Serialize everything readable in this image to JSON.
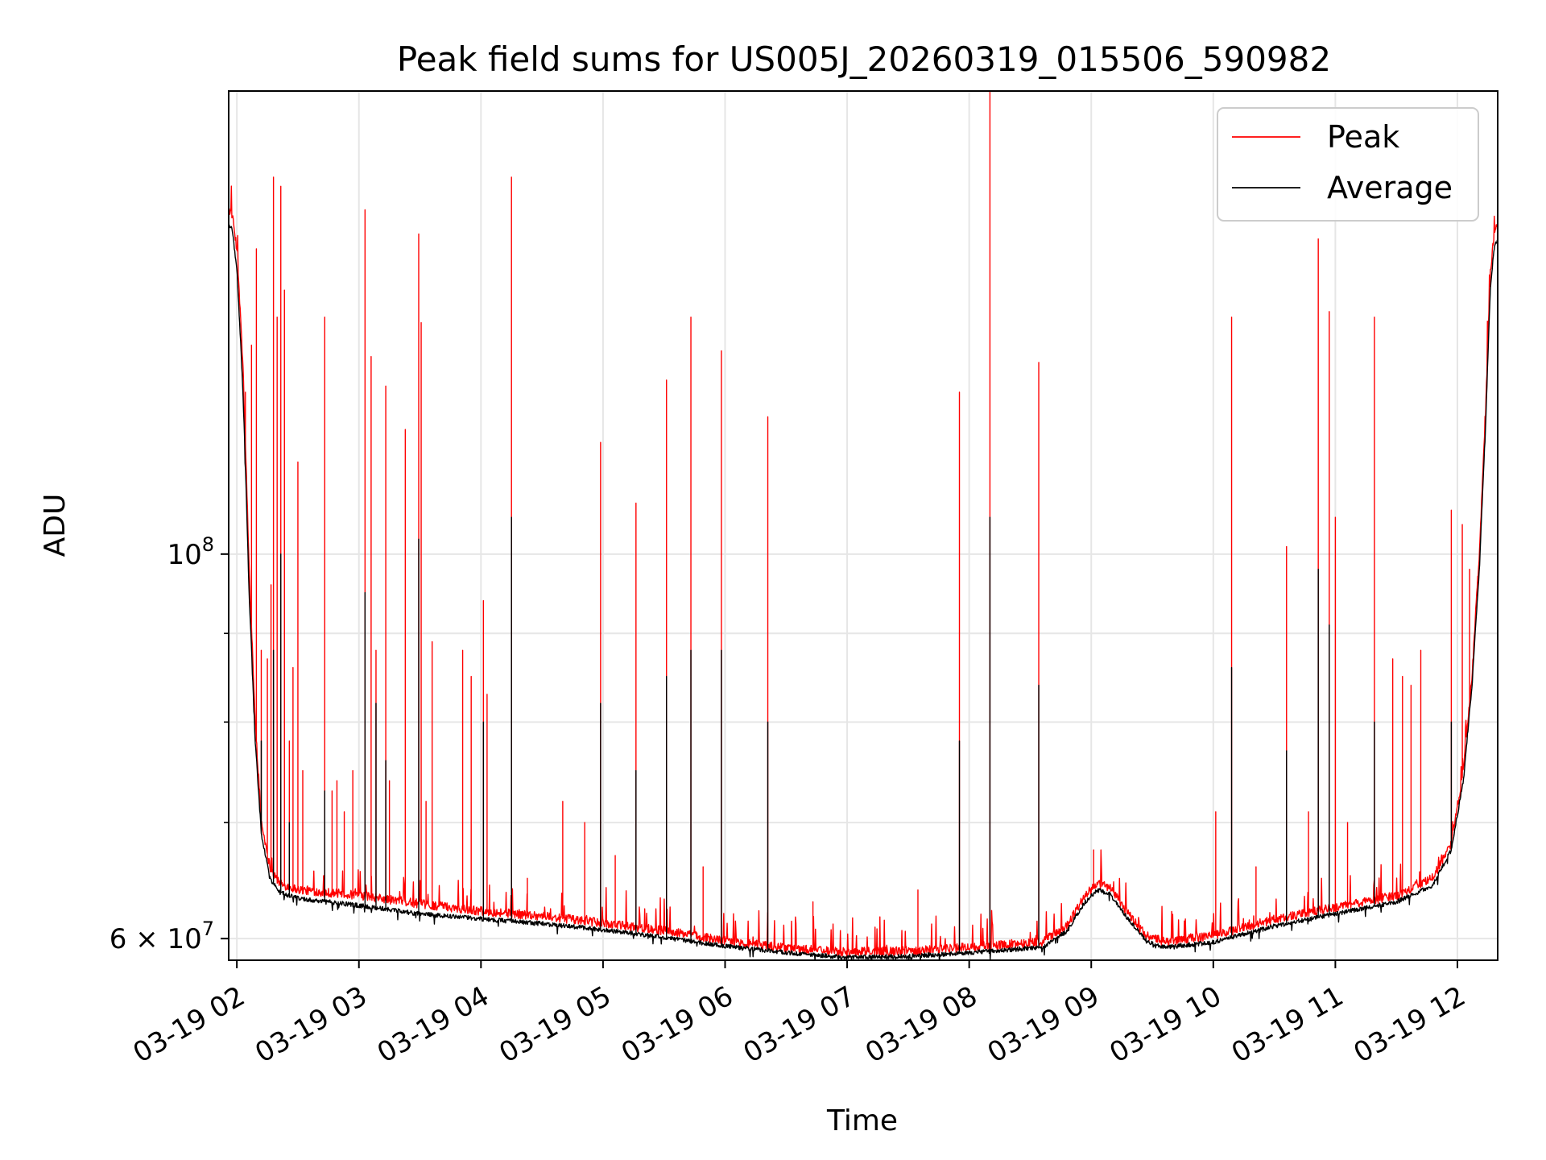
{
  "chart_data": {
    "type": "line",
    "title": "Peak field sums for US005J_20260319_015506_590982",
    "xlabel": "Time",
    "ylabel": "ADU",
    "yscale": "log",
    "ylim": [
      58300000,
      185000000
    ],
    "xlim_hours": [
      1.933,
      12.33
    ],
    "grid": true,
    "legend_position": "upper-right",
    "x_ticks": [
      {
        "hour": 2,
        "label": "03-19 02"
      },
      {
        "hour": 3,
        "label": "03-19 03"
      },
      {
        "hour": 4,
        "label": "03-19 04"
      },
      {
        "hour": 5,
        "label": "03-19 05"
      },
      {
        "hour": 6,
        "label": "03-19 06"
      },
      {
        "hour": 7,
        "label": "03-19 07"
      },
      {
        "hour": 8,
        "label": "03-19 08"
      },
      {
        "hour": 9,
        "label": "03-19 09"
      },
      {
        "hour": 10,
        "label": "03-19 10"
      },
      {
        "hour": 11,
        "label": "03-19 11"
      },
      {
        "hour": 12,
        "label": "03-19 12"
      }
    ],
    "y_major_ticks": [
      {
        "value": 60000000,
        "base": "6 × 10",
        "exp": "7"
      },
      {
        "value": 100000000,
        "base": "10",
        "exp": "8"
      }
    ],
    "y_minor_ticks": [
      70000000,
      80000000,
      90000000
    ],
    "series": [
      {
        "name": "Peak",
        "color": "#ff0000",
        "baseline": [
          [
            1.935,
            158000000
          ],
          [
            1.96,
            157000000
          ],
          [
            2.0,
            150000000
          ],
          [
            2.05,
            128000000
          ],
          [
            2.1,
            98000000
          ],
          [
            2.15,
            80000000
          ],
          [
            2.2,
            70000000
          ],
          [
            2.27,
            66000000
          ],
          [
            2.35,
            64500000
          ],
          [
            2.5,
            64000000
          ],
          [
            3.0,
            63500000
          ],
          [
            3.5,
            62800000
          ],
          [
            4.0,
            62200000
          ],
          [
            4.5,
            61800000
          ],
          [
            5.0,
            61200000
          ],
          [
            5.5,
            60600000
          ],
          [
            6.0,
            59800000
          ],
          [
            6.5,
            59200000
          ],
          [
            7.0,
            58900000
          ],
          [
            7.5,
            59000000
          ],
          [
            8.0,
            59300000
          ],
          [
            8.6,
            59700000
          ],
          [
            8.8,
            61000000
          ],
          [
            8.95,
            63500000
          ],
          [
            9.05,
            64500000
          ],
          [
            9.15,
            64200000
          ],
          [
            9.3,
            62000000
          ],
          [
            9.45,
            60200000
          ],
          [
            9.6,
            59700000
          ],
          [
            10.0,
            60200000
          ],
          [
            10.5,
            61500000
          ],
          [
            11.0,
            62500000
          ],
          [
            11.5,
            63500000
          ],
          [
            11.8,
            65000000
          ],
          [
            11.95,
            68000000
          ],
          [
            12.05,
            75000000
          ],
          [
            12.12,
            85000000
          ],
          [
            12.18,
            100000000
          ],
          [
            12.23,
            120000000
          ],
          [
            12.27,
            145000000
          ],
          [
            12.3,
            153000000
          ],
          [
            12.33,
            155000000
          ]
        ],
        "spikes": [
          [
            2.07,
            124000000
          ],
          [
            2.12,
            132000000
          ],
          [
            2.16,
            150000000
          ],
          [
            2.2,
            88000000
          ],
          [
            2.25,
            87000000
          ],
          [
            2.28,
            96000000
          ],
          [
            2.3,
            165000000
          ],
          [
            2.33,
            137000000
          ],
          [
            2.36,
            163000000
          ],
          [
            2.39,
            142000000
          ],
          [
            2.43,
            78000000
          ],
          [
            2.46,
            86000000
          ],
          [
            2.5,
            113000000
          ],
          [
            2.54,
            75000000
          ],
          [
            2.72,
            137000000
          ],
          [
            2.78,
            73000000
          ],
          [
            2.82,
            74000000
          ],
          [
            2.88,
            71000000
          ],
          [
            2.95,
            75000000
          ],
          [
            3.05,
            158000000
          ],
          [
            3.1,
            130000000
          ],
          [
            3.14,
            88000000
          ],
          [
            3.22,
            125000000
          ],
          [
            3.25,
            74000000
          ],
          [
            3.38,
            118000000
          ],
          [
            3.49,
            153000000
          ],
          [
            3.51,
            136000000
          ],
          [
            3.55,
            72000000
          ],
          [
            3.6,
            89000000
          ],
          [
            3.85,
            88000000
          ],
          [
            3.92,
            85000000
          ],
          [
            4.02,
            94000000
          ],
          [
            4.05,
            83000000
          ],
          [
            4.25,
            165000000
          ],
          [
            4.38,
            65000000
          ],
          [
            4.67,
            72000000
          ],
          [
            4.85,
            70000000
          ],
          [
            4.98,
            116000000
          ],
          [
            5.1,
            67000000
          ],
          [
            5.27,
            107000000
          ],
          [
            5.52,
            126000000
          ],
          [
            5.72,
            137000000
          ],
          [
            5.82,
            66000000
          ],
          [
            5.97,
            131000000
          ],
          [
            6.35,
            120000000
          ],
          [
            6.72,
            63000000
          ],
          [
            7.58,
            64000000
          ],
          [
            7.92,
            124000000
          ],
          [
            8.17,
            185000000
          ],
          [
            8.57,
            129000000
          ],
          [
            9.02,
            67500000
          ],
          [
            10.02,
            71000000
          ],
          [
            10.15,
            137000000
          ],
          [
            10.35,
            66000000
          ],
          [
            10.6,
            101000000
          ],
          [
            10.78,
            71000000
          ],
          [
            10.86,
            152000000
          ],
          [
            10.95,
            138000000
          ],
          [
            11.0,
            105000000
          ],
          [
            11.1,
            70000000
          ],
          [
            11.32,
            137000000
          ],
          [
            11.47,
            87000000
          ],
          [
            11.55,
            85000000
          ],
          [
            11.62,
            84000000
          ],
          [
            11.7,
            88000000
          ],
          [
            11.95,
            106000000
          ],
          [
            12.04,
            104000000
          ],
          [
            12.1,
            98000000
          ]
        ]
      },
      {
        "name": "Average",
        "color": "#000000",
        "baseline": [
          [
            1.935,
            155000000
          ],
          [
            1.96,
            154000000
          ],
          [
            2.0,
            146000000
          ],
          [
            2.05,
            124000000
          ],
          [
            2.1,
            95000000
          ],
          [
            2.15,
            78000000
          ],
          [
            2.2,
            69000000
          ],
          [
            2.27,
            65000000
          ],
          [
            2.35,
            63800000
          ],
          [
            2.5,
            63300000
          ],
          [
            3.0,
            62700000
          ],
          [
            3.5,
            62000000
          ],
          [
            4.0,
            61600000
          ],
          [
            4.5,
            61200000
          ],
          [
            5.0,
            60700000
          ],
          [
            5.5,
            60100000
          ],
          [
            6.0,
            59400000
          ],
          [
            6.5,
            58900000
          ],
          [
            7.0,
            58500000
          ],
          [
            7.5,
            58600000
          ],
          [
            8.0,
            58900000
          ],
          [
            8.6,
            59300000
          ],
          [
            8.8,
            60600000
          ],
          [
            8.95,
            63000000
          ],
          [
            9.05,
            64000000
          ],
          [
            9.15,
            63700000
          ],
          [
            9.3,
            61600000
          ],
          [
            9.45,
            59800000
          ],
          [
            9.6,
            59300000
          ],
          [
            10.0,
            59700000
          ],
          [
            10.5,
            61000000
          ],
          [
            11.0,
            62000000
          ],
          [
            11.5,
            63000000
          ],
          [
            11.8,
            64400000
          ],
          [
            11.95,
            67500000
          ],
          [
            12.05,
            74000000
          ],
          [
            12.12,
            84000000
          ],
          [
            12.18,
            98000000
          ],
          [
            12.23,
            118000000
          ],
          [
            12.27,
            142000000
          ],
          [
            12.3,
            150000000
          ],
          [
            12.33,
            152000000
          ]
        ],
        "spikes": [
          [
            2.2,
            78000000
          ],
          [
            2.3,
            88000000
          ],
          [
            2.36,
            100000000
          ],
          [
            2.43,
            70000000
          ],
          [
            2.72,
            73000000
          ],
          [
            3.05,
            95000000
          ],
          [
            3.14,
            82000000
          ],
          [
            3.22,
            76000000
          ],
          [
            3.49,
            102000000
          ],
          [
            4.02,
            80000000
          ],
          [
            4.25,
            105000000
          ],
          [
            4.98,
            82000000
          ],
          [
            5.27,
            75000000
          ],
          [
            5.52,
            85000000
          ],
          [
            5.72,
            88000000
          ],
          [
            5.97,
            88000000
          ],
          [
            6.35,
            80000000
          ],
          [
            7.92,
            78000000
          ],
          [
            8.17,
            105000000
          ],
          [
            8.57,
            84000000
          ],
          [
            10.15,
            86000000
          ],
          [
            10.6,
            77000000
          ],
          [
            10.86,
            98000000
          ],
          [
            10.95,
            91000000
          ],
          [
            11.32,
            80000000
          ],
          [
            11.95,
            80000000
          ]
        ]
      }
    ]
  }
}
